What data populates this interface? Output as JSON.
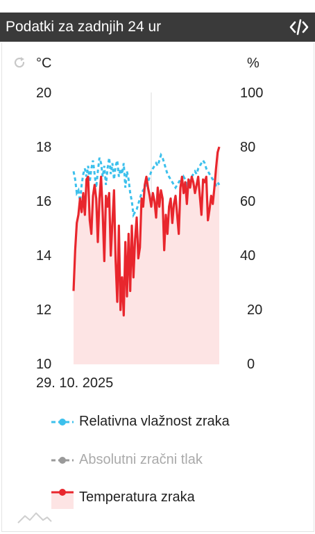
{
  "header": {
    "title": "Podatki za zadnjih 24 ur",
    "code_icon": "code-icon"
  },
  "toolbar": {
    "refresh_icon": "refresh-icon"
  },
  "axes": {
    "left_unit": "°C",
    "right_unit": "%",
    "left_ticks": [
      "20",
      "18",
      "16",
      "14",
      "12",
      "10"
    ],
    "right_ticks": [
      "100",
      "80",
      "60",
      "40",
      "20",
      "0"
    ],
    "date_label": "29. 10. 2025"
  },
  "legend": {
    "humidity": "Relativna vlažnost zraka",
    "pressure": "Absolutni zračni tlak",
    "temperature": "Temperatura zraka"
  },
  "colors": {
    "humidity": "#3cc0ec",
    "pressure": "#9a9a9a",
    "temperature": "#e8262d",
    "temp_fill": "#fde4e4"
  },
  "chart_data": {
    "type": "line",
    "x_label": "29. 10. 2025",
    "left_axis": {
      "unit": "°C",
      "ylim": [
        10,
        20
      ]
    },
    "right_axis": {
      "unit": "%",
      "ylim": [
        0,
        100
      ]
    },
    "series": [
      {
        "name": "Temperatura zraka",
        "axis": "left",
        "style": "solid",
        "fill": true,
        "values": [
          12.7,
          14.2,
          15.2,
          15.5,
          16.1,
          15.6,
          16.3,
          15.5,
          16.8,
          16.9,
          15.3,
          14.8,
          16.2,
          16.6,
          16.1,
          14.5,
          16.1,
          16.9,
          15.6,
          13.8,
          16.2,
          15.8,
          16.3,
          14.0,
          15.2,
          16.4,
          13.8,
          12.3,
          15.1,
          12.0,
          13.2,
          11.8,
          14.5,
          12.5,
          14.8,
          12.7,
          15.1,
          13.2,
          14.6,
          15.4,
          13.9,
          14.3,
          16.1,
          15.8,
          16.6,
          16.9,
          16.5,
          16.2,
          15.8,
          16.3,
          16.0,
          15.4,
          16.5,
          15.8,
          16.4,
          16.1,
          14.2,
          15.5,
          14.8,
          15.8,
          16.1,
          15.2,
          15.9,
          16.2,
          15.5,
          14.8,
          16.5,
          16.9,
          16.3,
          16.7,
          15.9,
          16.8,
          16.5,
          16.9,
          16.7,
          16.3,
          16.6,
          16.9,
          16.2,
          15.5,
          16.8,
          16.7,
          16.9,
          15.3,
          15.7,
          16.2,
          15.9,
          16.5,
          17.2,
          17.8,
          18.0
        ]
      },
      {
        "name": "Relativna vlažnost zraka",
        "axis": "right",
        "style": "dashed",
        "values": [
          71,
          68,
          63,
          64,
          60,
          66,
          70,
          72,
          69,
          73,
          67,
          72,
          75,
          70,
          65,
          71,
          76,
          74,
          69,
          73,
          66,
          72,
          76,
          70,
          74,
          68,
          73,
          75,
          69,
          72,
          70,
          74,
          65,
          71,
          68,
          63,
          60,
          55,
          56,
          57,
          59,
          61,
          63,
          64,
          65,
          66,
          67,
          69,
          71,
          72,
          73,
          74,
          73,
          75,
          77,
          76,
          74,
          72,
          70,
          69,
          68,
          67,
          66,
          65,
          66,
          67,
          68,
          67,
          69,
          68,
          66,
          67,
          68,
          69,
          70,
          71,
          70,
          72,
          73,
          74,
          75,
          74,
          72,
          71,
          70,
          69,
          68,
          67,
          66,
          67,
          66
        ]
      },
      {
        "name": "Absolutni zračni tlak",
        "axis": "right",
        "style": "dashed",
        "hidden": true,
        "values": []
      }
    ]
  }
}
